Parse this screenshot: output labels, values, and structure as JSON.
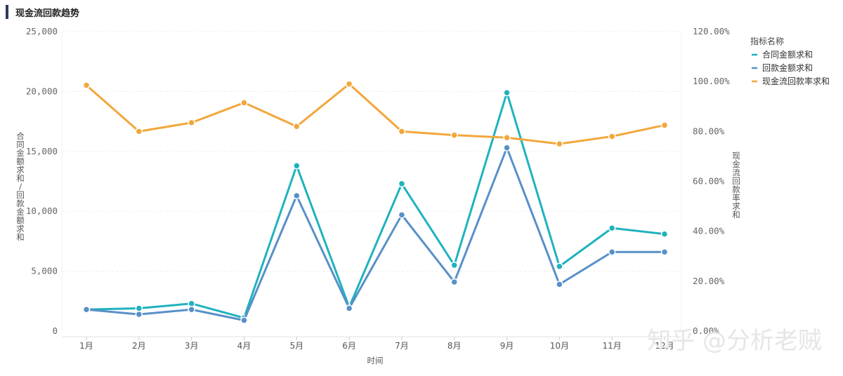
{
  "header": {
    "title": "现金流回款趋势"
  },
  "chart_data": {
    "type": "line",
    "categories": [
      "1月",
      "2月",
      "3月",
      "4月",
      "5月",
      "6月",
      "7月",
      "8月",
      "9月",
      "10月",
      "11月",
      "12月"
    ],
    "xlabel": "时间",
    "ylabel": "合同金额求和/回款金额求和",
    "y2label": "现金流回款率求和",
    "ylim": [
      0,
      25000
    ],
    "y2lim": [
      0,
      1.2
    ],
    "y_ticks": [
      "0",
      "5,000",
      "10,000",
      "15,000",
      "20,000",
      "25,000"
    ],
    "y2_ticks": [
      "0.00%",
      "20.00%",
      "40.00%",
      "60.00%",
      "80.00%",
      "100.00%",
      "120.00%"
    ],
    "legend_title": "指标名称",
    "legend_position": "top-right",
    "series": [
      {
        "name": "合同金额求和",
        "axis": "left",
        "color": "#1fb2be",
        "values": [
          1800,
          1900,
          2300,
          1100,
          13800,
          2000,
          12300,
          5500,
          19900,
          5400,
          8600,
          8100
        ]
      },
      {
        "name": "回款金额求和",
        "axis": "left",
        "color": "#5890c8",
        "values": [
          1800,
          1400,
          1800,
          900,
          11300,
          1900,
          9700,
          4100,
          15300,
          3900,
          6600,
          6600
        ]
      },
      {
        "name": "现金流回款率求和",
        "axis": "right",
        "color": "#f2a73b",
        "values": [
          0.985,
          0.8,
          0.835,
          0.915,
          0.82,
          0.99,
          0.8,
          0.785,
          0.775,
          0.75,
          0.78,
          0.825
        ]
      }
    ]
  },
  "watermark": "知乎 @分析老贼"
}
